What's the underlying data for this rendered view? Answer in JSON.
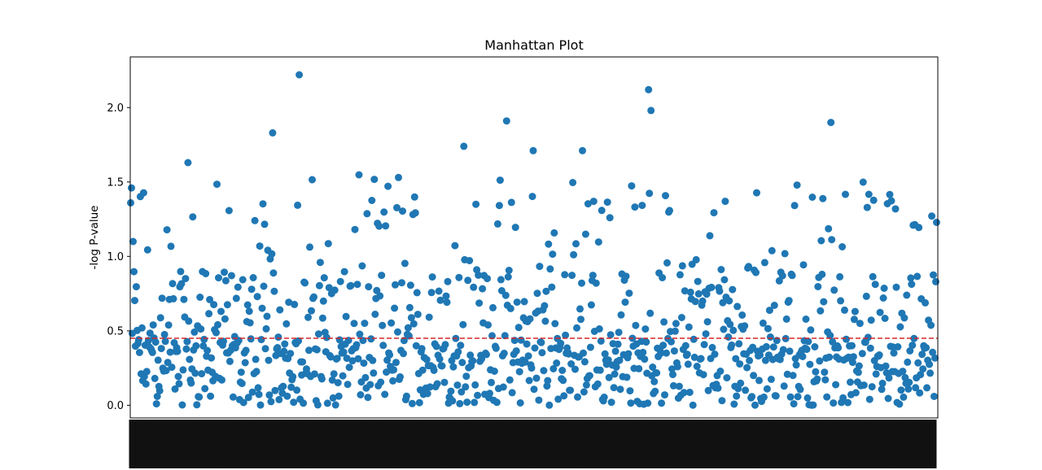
{
  "chart_data": {
    "type": "scatter",
    "title": "Manhattan Plot",
    "xlabel": "",
    "ylabel": "-log P-value",
    "ylim": [
      -0.085,
      2.34
    ],
    "yticks": [
      0.0,
      0.5,
      1.0,
      1.5,
      2.0
    ],
    "ytick_labels": [
      "0.0",
      "0.5",
      "1.0",
      "1.5",
      "2.0"
    ],
    "xlim": [
      -0.5,
      1000.5
    ],
    "n_points": 1000,
    "x_tick_labels_note": "one overlapping, rotated, illegible category label per point",
    "threshold": 0.45,
    "point_color": "#1f77b4",
    "threshold_color": "#d62728",
    "grid": false,
    "legend": false,
    "sample_points": [
      {
        "x": 1,
        "y": 1.46
      },
      {
        "x": 0,
        "y": 1.36
      },
      {
        "x": 3,
        "y": 1.1
      },
      {
        "x": 71,
        "y": 1.63
      },
      {
        "x": 176,
        "y": 1.83
      },
      {
        "x": 209,
        "y": 2.22
      },
      {
        "x": 413,
        "y": 1.74
      },
      {
        "x": 466,
        "y": 1.91
      },
      {
        "x": 499,
        "y": 1.71
      },
      {
        "x": 560,
        "y": 1.71
      },
      {
        "x": 642,
        "y": 2.12
      },
      {
        "x": 645,
        "y": 1.98
      },
      {
        "x": 868,
        "y": 1.9
      },
      {
        "x": 332,
        "y": 1.53
      },
      {
        "x": 970,
        "y": 1.21
      }
    ]
  }
}
